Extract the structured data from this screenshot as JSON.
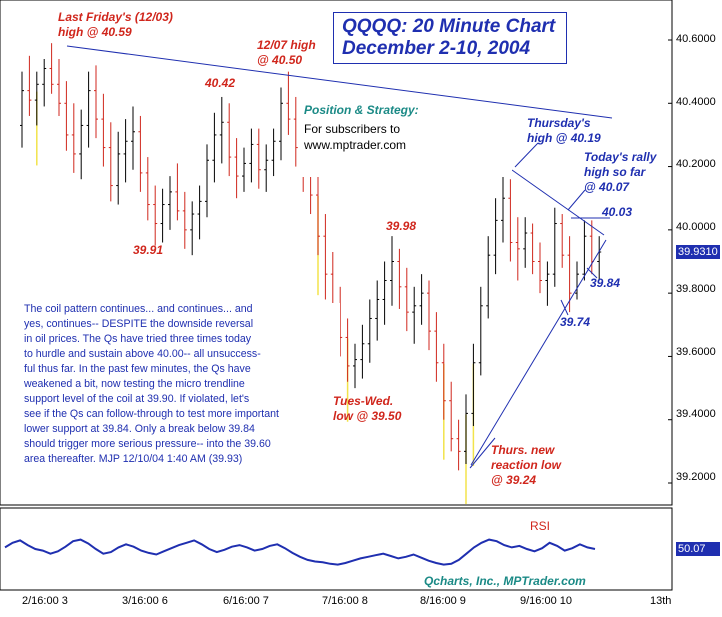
{
  "title": {
    "line1": "QQQQ: 20 Minute Chart",
    "line2": "December 2-10, 2004"
  },
  "position_strategy": {
    "heading": "Position & Strategy:",
    "line1": "For subscribers to",
    "line2": "www.mptrader.com"
  },
  "annotations": {
    "last_friday_1": "Last Friday's (12/03)",
    "last_friday_2": "high @ 40.59",
    "high_1207_1": "12/07 high",
    "high_1207_2": "@ 40.50",
    "level_4042": "40.42",
    "low_3991": "39.91",
    "level_3998": "39.98",
    "tues_wed_1": "Tues-Wed.",
    "tues_wed_2": "low @ 39.50",
    "thurs_low_1": "Thurs. new",
    "thurs_low_2": "reaction low",
    "thurs_low_3": "@ 39.24",
    "thursday_high_1": "Thursday's",
    "thursday_high_2": "high @ 40.19",
    "today_rally_1": "Today's rally",
    "today_rally_2": "high so far",
    "today_rally_3": "@ 40.07",
    "level_4003": "40.03",
    "level_3984": "39.84",
    "level_3974": "39.74",
    "rsi_label": "RSI",
    "credit": "Qcharts, Inc., MPTrader.com"
  },
  "commentary": [
    "The coil pattern continues... and continues... and",
    "yes, continues-- DESPITE the downside reversal",
    "in oil prices. The Qs have tried three times today",
    "to hurdle and sustain above 40.00-- all unsuccess-",
    "ful thus far. In the past few minutes, the Qs have",
    "weakened a bit, now testing the micro trendline",
    "support level of the coil at 39.90. If violated, let's",
    "see if the Qs can follow-through to test more important",
    "lower support at 39.84. Only a break below 39.84",
    "should trigger more serious pressure-- into the 39.60",
    "area thereafter.  MJP 12/10/04  1:40 AM (39.93)"
  ],
  "price_axis": {
    "ticks": [
      "40.6000",
      "40.4000",
      "40.2000",
      "40.0000",
      "39.8000",
      "39.6000",
      "39.4000",
      "39.2000"
    ],
    "last_price": "39.9310"
  },
  "rsi_axis": {
    "last_value": "50.07"
  },
  "date_axis": {
    "ticks": [
      "2/16:00 3",
      "3/16:00 6",
      "6/16:00 7",
      "7/16:00 8",
      "8/16:00 9",
      "9/16:00 10",
      "13th"
    ]
  },
  "colors": {
    "bar": "#000000",
    "down_bar": "#d0261c",
    "volume_marker": "#f2e34a",
    "trendline": "#1f2fb0",
    "rsi_line": "#1f2fb0",
    "last_price_badge": "#1f2fb0"
  },
  "chart_data": {
    "type": "ohlc",
    "symbol": "QQQQ",
    "interval": "20 minute",
    "ylim": [
      39.15,
      40.7
    ],
    "x_range_days": [
      "12/2",
      "12/13"
    ],
    "key_points": [
      {
        "label": "Last Friday's (12/03) high",
        "value": 40.59
      },
      {
        "label": "40.42",
        "value": 40.42
      },
      {
        "label": "12/07 high",
        "value": 40.5
      },
      {
        "label": "39.91",
        "value": 39.91
      },
      {
        "label": "39.98",
        "value": 39.98
      },
      {
        "label": "Tues-Wed. low",
        "value": 39.5
      },
      {
        "label": "Thurs. new reaction low",
        "value": 39.24
      },
      {
        "label": "Thursday's high",
        "value": 40.19
      },
      {
        "label": "Today's rally high so far",
        "value": 40.07
      },
      {
        "label": "40.03",
        "value": 40.03
      },
      {
        "label": "39.84",
        "value": 39.84
      },
      {
        "label": "39.74",
        "value": 39.74
      }
    ],
    "bars": [
      [
        40.33,
        40.5,
        40.26,
        40.44
      ],
      [
        40.44,
        40.55,
        40.36,
        40.41
      ],
      [
        40.41,
        40.5,
        40.33,
        40.46
      ],
      [
        40.46,
        40.54,
        40.39,
        40.51
      ],
      [
        40.51,
        40.59,
        40.43,
        40.46
      ],
      [
        40.46,
        40.54,
        40.36,
        40.4
      ],
      [
        40.4,
        40.47,
        40.25,
        40.3
      ],
      [
        40.3,
        40.4,
        40.18,
        40.24
      ],
      [
        40.24,
        40.38,
        40.16,
        40.33
      ],
      [
        40.33,
        40.5,
        40.26,
        40.44
      ],
      [
        40.44,
        40.52,
        40.29,
        40.35
      ],
      [
        40.35,
        40.43,
        40.2,
        40.26
      ],
      [
        40.26,
        40.34,
        40.09,
        40.14
      ],
      [
        40.14,
        40.31,
        40.08,
        40.24
      ],
      [
        40.24,
        40.35,
        40.15,
        40.28
      ],
      [
        40.28,
        40.39,
        40.19,
        40.31
      ],
      [
        40.31,
        40.36,
        40.12,
        40.18
      ],
      [
        40.18,
        40.23,
        40.03,
        40.08
      ],
      [
        40.08,
        40.14,
        39.95,
        40.02
      ],
      [
        40.02,
        40.13,
        39.96,
        40.08
      ],
      [
        40.08,
        40.17,
        40.0,
        40.12
      ],
      [
        40.12,
        40.21,
        40.03,
        40.06
      ],
      [
        40.06,
        40.12,
        39.94,
        40.0
      ],
      [
        40.0,
        40.09,
        39.92,
        40.05
      ],
      [
        40.05,
        40.14,
        39.97,
        40.09
      ],
      [
        40.09,
        40.27,
        40.04,
        40.22
      ],
      [
        40.22,
        40.37,
        40.15,
        40.3
      ],
      [
        40.3,
        40.42,
        40.21,
        40.34
      ],
      [
        40.34,
        40.4,
        40.17,
        40.23
      ],
      [
        40.23,
        40.29,
        40.1,
        40.17
      ],
      [
        40.17,
        40.26,
        40.12,
        40.21
      ],
      [
        40.21,
        40.32,
        40.15,
        40.27
      ],
      [
        40.27,
        40.32,
        40.13,
        40.19
      ],
      [
        40.19,
        40.27,
        40.12,
        40.22
      ],
      [
        40.22,
        40.32,
        40.17,
        40.28
      ],
      [
        40.28,
        40.45,
        40.22,
        40.4
      ],
      [
        40.4,
        40.5,
        40.3,
        40.35
      ],
      [
        40.35,
        40.42,
        40.2,
        40.26
      ],
      [
        40.26,
        40.33,
        40.12,
        40.18
      ],
      [
        40.18,
        40.24,
        40.05,
        40.11
      ],
      [
        40.11,
        40.17,
        39.92,
        39.98
      ],
      [
        39.98,
        40.05,
        39.78,
        39.86
      ],
      [
        39.86,
        39.93,
        39.7,
        39.76
      ],
      [
        39.76,
        39.82,
        39.6,
        39.66
      ],
      [
        39.66,
        39.72,
        39.52,
        39.57
      ],
      [
        39.57,
        39.64,
        39.5,
        39.59
      ],
      [
        39.59,
        39.7,
        39.53,
        39.64
      ],
      [
        39.64,
        39.78,
        39.58,
        39.72
      ],
      [
        39.72,
        39.84,
        39.65,
        39.78
      ],
      [
        39.78,
        39.9,
        39.7,
        39.84
      ],
      [
        39.84,
        39.98,
        39.76,
        39.9
      ],
      [
        39.9,
        39.94,
        39.75,
        39.82
      ],
      [
        39.82,
        39.88,
        39.68,
        39.74
      ],
      [
        39.74,
        39.82,
        39.64,
        39.76
      ],
      [
        39.76,
        39.86,
        39.7,
        39.8
      ],
      [
        39.8,
        39.84,
        39.62,
        39.68
      ],
      [
        39.68,
        39.74,
        39.52,
        39.58
      ],
      [
        39.58,
        39.64,
        39.4,
        39.46
      ],
      [
        39.46,
        39.52,
        39.3,
        39.34
      ],
      [
        39.34,
        39.4,
        39.24,
        39.3
      ],
      [
        39.3,
        39.48,
        39.26,
        39.42
      ],
      [
        39.42,
        39.64,
        39.38,
        39.58
      ],
      [
        39.58,
        39.82,
        39.54,
        39.76
      ],
      [
        39.76,
        39.98,
        39.72,
        39.92
      ],
      [
        39.92,
        40.1,
        39.86,
        40.03
      ],
      [
        40.03,
        40.19,
        39.96,
        40.1
      ],
      [
        40.1,
        40.16,
        39.9,
        39.96
      ],
      [
        39.96,
        40.04,
        39.84,
        39.94
      ],
      [
        39.94,
        40.04,
        39.88,
        39.99
      ],
      [
        39.99,
        40.02,
        39.86,
        39.9
      ],
      [
        39.9,
        39.96,
        39.8,
        39.84
      ],
      [
        39.84,
        39.9,
        39.76,
        39.86
      ],
      [
        39.86,
        40.07,
        39.82,
        40.02
      ],
      [
        40.02,
        40.05,
        39.88,
        39.92
      ],
      [
        39.92,
        39.98,
        39.74,
        39.8
      ],
      [
        39.8,
        39.9,
        39.78,
        39.86
      ],
      [
        39.86,
        40.03,
        39.84,
        39.98
      ],
      [
        39.98,
        40.03,
        39.86,
        39.9
      ],
      [
        39.9,
        39.98,
        39.84,
        39.93
      ]
    ],
    "rsi": [
      52,
      58,
      61,
      55,
      50,
      48,
      44,
      47,
      53,
      60,
      62,
      57,
      50,
      44,
      46,
      52,
      56,
      53,
      48,
      45,
      43,
      47,
      51,
      55,
      58,
      61,
      56,
      50,
      46,
      49,
      53,
      55,
      52,
      48,
      50,
      54,
      56,
      51,
      45,
      40,
      36,
      34,
      33,
      31,
      30,
      32,
      35,
      38,
      40,
      42,
      44,
      41,
      38,
      40,
      43,
      39,
      35,
      32,
      30,
      31,
      36,
      44,
      52,
      58,
      62,
      60,
      55,
      52,
      54,
      50,
      47,
      51,
      58,
      54,
      48,
      51,
      56,
      52,
      50
    ]
  }
}
